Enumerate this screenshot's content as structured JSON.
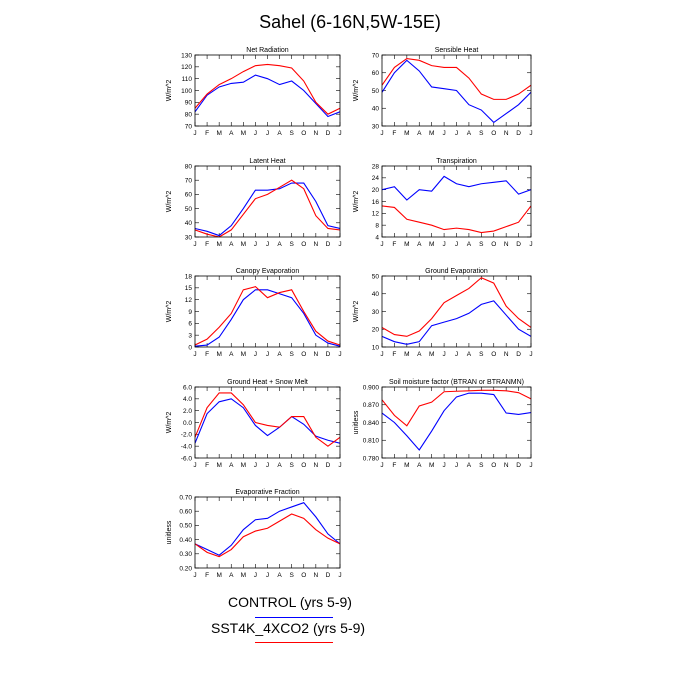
{
  "figure": {
    "title": "Sahel (6-16N,5W-15E)",
    "months": [
      "J",
      "F",
      "M",
      "A",
      "M",
      "J",
      "J",
      "A",
      "S",
      "O",
      "N",
      "D",
      "J"
    ],
    "colors": {
      "control": "#0000ff",
      "experiment": "#ff0000"
    }
  },
  "legend": {
    "control_label": "CONTROL (yrs 5-9)",
    "experiment_label": "SST4K_4XCO2 (yrs 5-9)"
  },
  "chart_data": [
    {
      "type": "line",
      "title": "Net Radiation",
      "ylabel": "W/m^2",
      "ylim": [
        70,
        130
      ],
      "yticks": [
        "70",
        "80",
        "90",
        "100",
        "110",
        "120",
        "130"
      ],
      "x": [
        "J",
        "F",
        "M",
        "A",
        "M",
        "J",
        "J",
        "A",
        "S",
        "O",
        "N",
        "D",
        "J"
      ],
      "series": [
        {
          "name": "CONTROL (yrs 5-9)",
          "values": [
            82,
            96,
            103,
            106,
            107,
            113,
            110,
            105,
            108,
            100,
            89,
            78,
            82
          ]
        },
        {
          "name": "SST4K_4XCO2 (yrs 5-9)",
          "values": [
            85,
            97,
            105,
            110,
            116,
            121,
            122,
            121,
            119,
            108,
            90,
            80,
            85
          ]
        }
      ]
    },
    {
      "type": "line",
      "title": "Sensible Heat",
      "ylabel": "W/m^2",
      "ylim": [
        30,
        70
      ],
      "yticks": [
        "30",
        "40",
        "50",
        "60",
        "70"
      ],
      "x": [
        "J",
        "F",
        "M",
        "A",
        "M",
        "J",
        "J",
        "A",
        "S",
        "O",
        "N",
        "D",
        "J"
      ],
      "series": [
        {
          "name": "CONTROL (yrs 5-9)",
          "values": [
            49,
            60,
            67,
            61,
            52,
            51,
            50,
            42,
            39,
            32,
            37,
            42,
            49
          ]
        },
        {
          "name": "SST4K_4XCO2 (yrs 5-9)",
          "values": [
            53,
            63,
            68,
            67,
            64,
            63,
            63,
            57,
            48,
            45,
            45,
            48,
            53
          ]
        }
      ]
    },
    {
      "type": "line",
      "title": "Latent Heat",
      "ylabel": "W/m^2",
      "ylim": [
        30,
        80
      ],
      "yticks": [
        "30",
        "40",
        "50",
        "60",
        "70",
        "80"
      ],
      "x": [
        "J",
        "F",
        "M",
        "A",
        "M",
        "J",
        "J",
        "A",
        "S",
        "O",
        "N",
        "D",
        "J"
      ],
      "series": [
        {
          "name": "CONTROL (yrs 5-9)",
          "values": [
            36,
            34,
            31,
            38,
            50,
            63,
            63,
            64,
            68,
            68,
            55,
            38,
            36
          ]
        },
        {
          "name": "SST4K_4XCO2 (yrs 5-9)",
          "values": [
            35,
            32,
            30,
            35,
            46,
            57,
            60,
            65,
            70,
            64,
            45,
            36,
            35
          ]
        }
      ]
    },
    {
      "type": "line",
      "title": "Transpiration",
      "ylabel": "W/m^2",
      "ylim": [
        4,
        28
      ],
      "yticks": [
        "4",
        "8",
        "12",
        "16",
        "20",
        "24",
        "28"
      ],
      "x": [
        "J",
        "F",
        "M",
        "A",
        "M",
        "J",
        "J",
        "A",
        "S",
        "O",
        "N",
        "D",
        "J"
      ],
      "series": [
        {
          "name": "CONTROL (yrs 5-9)",
          "values": [
            20,
            21,
            16.5,
            20,
            19.5,
            24.5,
            22,
            21,
            22,
            22.5,
            23,
            18.5,
            20
          ]
        },
        {
          "name": "SST4K_4XCO2 (yrs 5-9)",
          "values": [
            14.5,
            14,
            10,
            9,
            8,
            6.5,
            7,
            6.5,
            5.5,
            6,
            7.5,
            9,
            14.5
          ]
        }
      ]
    },
    {
      "type": "line",
      "title": "Canopy Evaporation",
      "ylabel": "W/m^2",
      "ylim": [
        0,
        18
      ],
      "yticks": [
        "0",
        "3",
        "6",
        "9",
        "12",
        "15",
        "18"
      ],
      "x": [
        "J",
        "F",
        "M",
        "A",
        "M",
        "J",
        "J",
        "A",
        "S",
        "O",
        "N",
        "D",
        "J"
      ],
      "series": [
        {
          "name": "CONTROL (yrs 5-9)",
          "values": [
            0.2,
            0.5,
            2.5,
            7,
            12,
            14.5,
            14.5,
            13.5,
            12.5,
            8.5,
            3,
            1,
            0.2
          ]
        },
        {
          "name": "SST4K_4XCO2 (yrs 5-9)",
          "values": [
            0.5,
            2,
            5,
            8.5,
            14.5,
            15.3,
            12.5,
            13.8,
            14.5,
            9,
            4,
            1.5,
            0.5
          ]
        }
      ]
    },
    {
      "type": "line",
      "title": "Ground Evaporation",
      "ylabel": "W/m^2",
      "ylim": [
        10,
        50
      ],
      "yticks": [
        "10",
        "20",
        "30",
        "40",
        "50"
      ],
      "x": [
        "J",
        "F",
        "M",
        "A",
        "M",
        "J",
        "J",
        "A",
        "S",
        "O",
        "N",
        "D",
        "J"
      ],
      "series": [
        {
          "name": "CONTROL (yrs 5-9)",
          "values": [
            16,
            13,
            11.5,
            13,
            22,
            24,
            26,
            29,
            34,
            36,
            28,
            20,
            16
          ]
        },
        {
          "name": "SST4K_4XCO2 (yrs 5-9)",
          "values": [
            21,
            17,
            16,
            19,
            26,
            35,
            39,
            43,
            49,
            46,
            33,
            26,
            21
          ]
        }
      ]
    },
    {
      "type": "line",
      "title": "Ground Heat + Snow Melt",
      "ylabel": "W/m^2",
      "ylim": [
        -6,
        6
      ],
      "yticks": [
        "-6.0",
        "-4.0",
        "-2.0",
        "0.0",
        "2.0",
        "4.0",
        "6.0"
      ],
      "x": [
        "J",
        "F",
        "M",
        "A",
        "M",
        "J",
        "J",
        "A",
        "S",
        "O",
        "N",
        "D",
        "J"
      ],
      "series": [
        {
          "name": "CONTROL (yrs 5-9)",
          "values": [
            -3.5,
            1.5,
            3.5,
            4,
            2.5,
            -0.5,
            -2.2,
            -0.8,
            1,
            -0.3,
            -2.3,
            -3,
            -3.5
          ]
        },
        {
          "name": "SST4K_4XCO2 (yrs 5-9)",
          "values": [
            -2.5,
            2.5,
            5,
            5,
            3,
            0,
            -0.5,
            -0.8,
            1,
            1,
            -2.5,
            -4,
            -2.5
          ]
        }
      ]
    },
    {
      "type": "line",
      "title": "Soil moisture factor (BTRAN or BTRANMN)",
      "ylabel": "unitless",
      "ylim": [
        0.75,
        0.9
      ],
      "yticks": [
        "0.780",
        "0.810",
        "0.840",
        "0.870",
        "0.900"
      ],
      "x": [
        "J",
        "F",
        "M",
        "A",
        "M",
        "J",
        "J",
        "A",
        "S",
        "O",
        "N",
        "D",
        "J"
      ],
      "series": [
        {
          "name": "CONTROL (yrs 5-9)",
          "values": [
            0.845,
            0.825,
            0.797,
            0.767,
            0.807,
            0.85,
            0.879,
            0.887,
            0.887,
            0.884,
            0.845,
            0.842,
            0.846
          ]
        },
        {
          "name": "SST4K_4XCO2 (yrs 5-9)",
          "values": [
            0.873,
            0.84,
            0.818,
            0.86,
            0.868,
            0.89,
            0.891,
            0.892,
            0.893,
            0.893,
            0.892,
            0.888,
            0.875
          ]
        }
      ]
    },
    {
      "type": "line",
      "title": "Evaporative Fraction",
      "ylabel": "unitless",
      "ylim": [
        0.2,
        0.7
      ],
      "yticks": [
        "0.20",
        "0.30",
        "0.40",
        "0.50",
        "0.60",
        "0.70"
      ],
      "x": [
        "J",
        "F",
        "M",
        "A",
        "M",
        "J",
        "J",
        "A",
        "S",
        "O",
        "N",
        "D",
        "J"
      ],
      "series": [
        {
          "name": "CONTROL (yrs 5-9)",
          "values": [
            0.37,
            0.33,
            0.29,
            0.36,
            0.47,
            0.54,
            0.55,
            0.6,
            0.63,
            0.66,
            0.56,
            0.44,
            0.37
          ]
        },
        {
          "name": "SST4K_4XCO2 (yrs 5-9)",
          "values": [
            0.37,
            0.31,
            0.28,
            0.33,
            0.42,
            0.46,
            0.48,
            0.53,
            0.58,
            0.55,
            0.47,
            0.41,
            0.37
          ]
        }
      ]
    }
  ]
}
